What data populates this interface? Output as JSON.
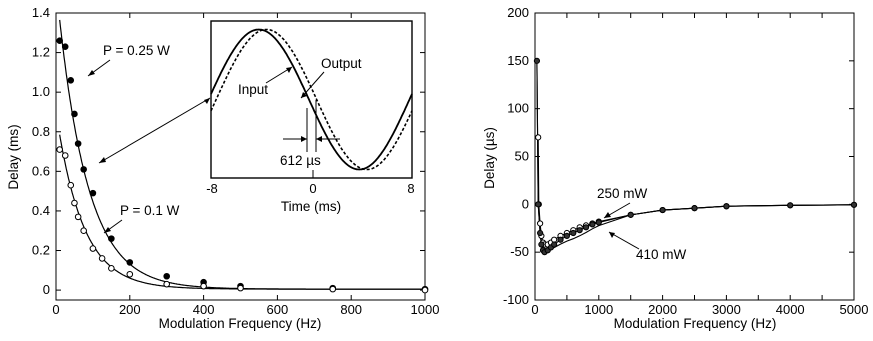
{
  "chart_data": [
    {
      "type": "scatter",
      "xlabel": "Modulation Frequency (Hz)",
      "ylabel": "Delay (ms)",
      "xlim": [
        0,
        1000
      ],
      "ylim": [
        -0.05,
        1.4
      ],
      "x_ticks": [
        0,
        200,
        400,
        600,
        800,
        1000
      ],
      "y_ticks": [
        0,
        0.2,
        0.4,
        0.6,
        0.8,
        1.0,
        1.2,
        1.4
      ],
      "y_tick_labels": [
        "0",
        "0.2",
        "0.4",
        "0.6",
        "0.8",
        "1.0",
        "1.2",
        "1.4"
      ],
      "series": [
        {
          "name": "P = 0.25 W",
          "marker": "filled-circle",
          "x": [
            10,
            25,
            40,
            50,
            60,
            75,
            100,
            150,
            200,
            300,
            400,
            500,
            750,
            1000
          ],
          "y": [
            1.26,
            1.23,
            1.06,
            0.89,
            0.74,
            0.61,
            0.49,
            0.26,
            0.14,
            0.07,
            0.04,
            0.02,
            0.01,
            0.005
          ]
        },
        {
          "name": "P = 0.1 W",
          "marker": "open-circle",
          "x": [
            10,
            25,
            40,
            50,
            60,
            75,
            100,
            125,
            150,
            200,
            300,
            400,
            500,
            750,
            1000
          ],
          "y": [
            0.71,
            0.68,
            0.53,
            0.44,
            0.37,
            0.3,
            0.21,
            0.16,
            0.11,
            0.08,
            0.03,
            0.02,
            0.01,
            0.005,
            0.0
          ]
        }
      ],
      "annotations": [
        {
          "text": "P = 0.25 W"
        },
        {
          "text": "P = 0.1 W"
        }
      ],
      "inset": {
        "type": "line",
        "xlabel": "Time (ms)",
        "x_tick_labels": [
          "-8",
          "0",
          "8"
        ],
        "series": [
          {
            "name": "Input",
            "style": "solid"
          },
          {
            "name": "Output",
            "style": "dashed"
          }
        ],
        "annotation": "612 µs"
      }
    },
    {
      "type": "scatter",
      "xlabel": "Modulation Frequency (Hz)",
      "ylabel": "Delay (µs)",
      "xlim": [
        0,
        5000
      ],
      "ylim": [
        -100,
        200
      ],
      "x_ticks": [
        0,
        500,
        1000,
        1500,
        2000,
        2500,
        3000,
        3500,
        4000,
        4500,
        5000
      ],
      "x_tick_labels": [
        "0",
        "1000",
        "2000",
        "3000",
        "4000",
        "5000"
      ],
      "y_ticks": [
        -100,
        -50,
        0,
        50,
        100,
        150,
        200
      ],
      "series": [
        {
          "name": "250 mW",
          "marker": "open-circle",
          "x": [
            50,
            60,
            80,
            100,
            125,
            150,
            200,
            250,
            300,
            400,
            500,
            600,
            700,
            800,
            900,
            1000,
            1500,
            2000,
            2500,
            3000,
            4000,
            5000
          ],
          "y": [
            70,
            0,
            -20,
            -33,
            -40,
            -42,
            -42,
            -40,
            -37,
            -33,
            -30,
            -27,
            -24,
            -22,
            -20,
            -18,
            -11,
            -6,
            -4,
            -2,
            -1,
            -0.5
          ]
        },
        {
          "name": "410 mW",
          "marker": "filled-circle",
          "x": [
            30,
            50,
            80,
            100,
            125,
            150,
            200,
            250,
            300,
            400,
            500,
            600,
            700,
            800,
            900,
            1000,
            1500,
            2000,
            2500,
            3000,
            4000,
            5000
          ],
          "y": [
            150,
            0,
            -30,
            -42,
            -48,
            -50,
            -48,
            -45,
            -42,
            -37,
            -33,
            -30,
            -27,
            -24,
            -21,
            -19,
            -11,
            -6,
            -4,
            -2,
            -1,
            -0.5
          ]
        }
      ],
      "annotations": [
        {
          "text": "250 mW"
        },
        {
          "text": "410 mW"
        }
      ]
    }
  ]
}
